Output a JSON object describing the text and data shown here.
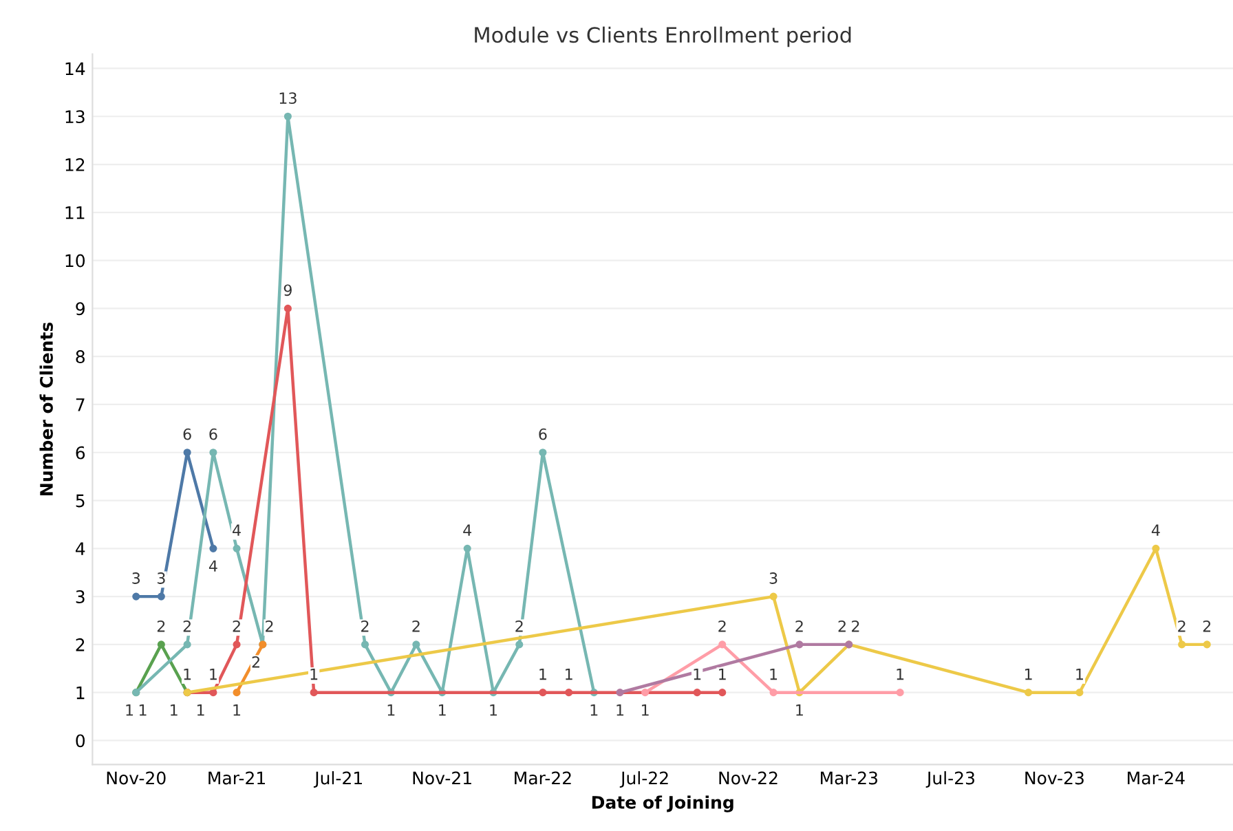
{
  "chart_data": {
    "type": "line",
    "title": "Module vs Clients Enrollment period",
    "xlabel": "Date of Joining",
    "ylabel": "Number of Clients",
    "xlim": [
      "2020-09-10",
      "2024-06-01"
    ],
    "xticks": [
      {
        "value": "2020-11",
        "label": "Nov-20"
      },
      {
        "value": "2021-03",
        "label": "Mar-21"
      },
      {
        "value": "2021-07",
        "label": "Jul-21"
      },
      {
        "value": "2021-11",
        "label": "Nov-21"
      },
      {
        "value": "2022-03",
        "label": "Mar-22"
      },
      {
        "value": "2022-07",
        "label": "Jul-22"
      },
      {
        "value": "2022-11",
        "label": "Nov-22"
      },
      {
        "value": "2023-03",
        "label": "Mar-23"
      },
      {
        "value": "2023-07",
        "label": "Jul-23"
      },
      {
        "value": "2023-11",
        "label": "Nov-23"
      },
      {
        "value": "2024-03",
        "label": "Mar-24"
      }
    ],
    "ylim": [
      -0.5,
      14.3
    ],
    "yticks": [
      0,
      1,
      2,
      3,
      4,
      5,
      6,
      7,
      8,
      9,
      10,
      11,
      12,
      13,
      14
    ],
    "grid": "y",
    "legend": false,
    "marker": "circle",
    "line_style": "solid",
    "data_labels": true,
    "series": [
      {
        "color": "#4e79a7",
        "x": [
          "2020-11",
          "2020-12",
          "2021-01",
          "2021-02"
        ],
        "values": [
          3,
          3,
          6,
          4
        ]
      },
      {
        "color": "#59a14f",
        "x": [
          "2020-11",
          "2020-12",
          "2021-01"
        ],
        "values": [
          1,
          2,
          1
        ]
      },
      {
        "color": "#76b7b2",
        "x": [
          "2020-11",
          "2021-01",
          "2021-02",
          "2021-03",
          "2021-04",
          "2021-05",
          "2021-08",
          "2021-09",
          "2021-10",
          "2021-11",
          "2021-12",
          "2022-01",
          "2022-02",
          "2022-03",
          "2022-05"
        ],
        "values": [
          1,
          2,
          6,
          4,
          2,
          13,
          2,
          1,
          2,
          1,
          4,
          1,
          2,
          6,
          1
        ]
      },
      {
        "color": "#e15759",
        "x": [
          "2021-01",
          "2021-02",
          "2021-03",
          "2021-05",
          "2021-06",
          "2022-03",
          "2022-04",
          "2022-09",
          "2022-10"
        ],
        "values": [
          1,
          1,
          2,
          9,
          1,
          1,
          1,
          1,
          1
        ]
      },
      {
        "color": "#f28e2b",
        "x": [
          "2021-03",
          "2021-04"
        ],
        "values": [
          1,
          2
        ]
      },
      {
        "color": "#edc948",
        "x": [
          "2021-01",
          "2022-12",
          "2023-01",
          "2023-03",
          "2023-10",
          "2023-12",
          "2024-03",
          "2024-04",
          "2024-05"
        ],
        "values": [
          1,
          3,
          1,
          2,
          1,
          1,
          4,
          2,
          2
        ]
      },
      {
        "color": "#ff9da7",
        "x": [
          "2022-07",
          "2022-10",
          "2022-12",
          "2023-05"
        ],
        "values": [
          1,
          2,
          1,
          1
        ]
      },
      {
        "color": "#b07aa1",
        "x": [
          "2022-06",
          "2023-01",
          "2023-03"
        ],
        "values": [
          1,
          2,
          2
        ]
      }
    ]
  }
}
